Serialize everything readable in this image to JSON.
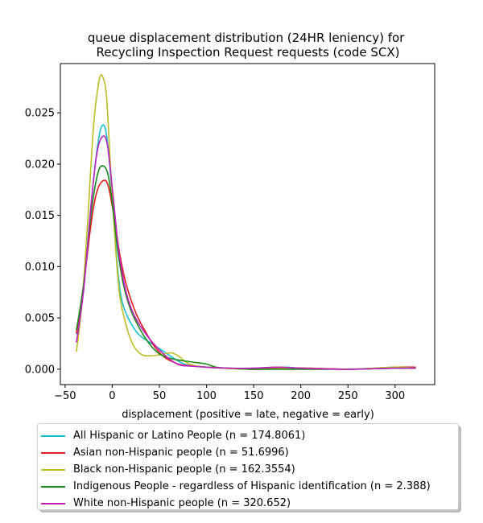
{
  "chart_data": {
    "type": "line",
    "title": "queue displacement distribution (24HR leniency) for\nRecycling Inspection Request  requests (code SCX)",
    "xlabel": "displacement (positive = late, negative = early)",
    "ylabel": "",
    "xlim": [
      -55,
      342
    ],
    "ylim": [
      -0.0015,
      0.0298
    ],
    "xticks": [
      -50,
      0,
      50,
      100,
      150,
      200,
      250,
      300
    ],
    "yticks": [
      0.0,
      0.005,
      0.01,
      0.015,
      0.02,
      0.025
    ],
    "xtick_labels": [
      "−50",
      "0",
      "50",
      "100",
      "150",
      "200",
      "250",
      "300"
    ],
    "ytick_labels": [
      "0.000",
      "0.005",
      "0.010",
      "0.015",
      "0.020",
      "0.025"
    ],
    "grid": false,
    "legend_placement": "below",
    "series": [
      {
        "name": "All Hispanic or Latino People (n = 174.8061)",
        "color": "#17becf",
        "points": [
          [
            -38,
            0.0034
          ],
          [
            -30,
            0.0085
          ],
          [
            -22,
            0.0165
          ],
          [
            -16,
            0.0215
          ],
          [
            -11,
            0.0237
          ],
          [
            -6,
            0.0228
          ],
          [
            0,
            0.017
          ],
          [
            5,
            0.0105
          ],
          [
            10,
            0.0068
          ],
          [
            18,
            0.0048
          ],
          [
            28,
            0.0034
          ],
          [
            40,
            0.0026
          ],
          [
            55,
            0.0017
          ],
          [
            70,
            0.0008
          ],
          [
            80,
            0.0004
          ],
          [
            100,
            0.0002
          ],
          [
            120,
            0.0001
          ],
          [
            150,
            0.0
          ],
          [
            170,
            0.0001
          ],
          [
            185,
            0.0002
          ],
          [
            200,
            0.0001
          ],
          [
            250,
            0.0
          ],
          [
            300,
            0.0001
          ],
          [
            322,
            0.0001
          ]
        ]
      },
      {
        "name": "Asian non-Hispanic people (n = 51.6996)",
        "color": "#e41a1c",
        "points": [
          [
            -38,
            0.0035
          ],
          [
            -30,
            0.0085
          ],
          [
            -22,
            0.0145
          ],
          [
            -16,
            0.0174
          ],
          [
            -9,
            0.0184
          ],
          [
            -4,
            0.0178
          ],
          [
            2,
            0.0148
          ],
          [
            8,
            0.0112
          ],
          [
            15,
            0.0082
          ],
          [
            25,
            0.0055
          ],
          [
            35,
            0.0037
          ],
          [
            45,
            0.0022
          ],
          [
            55,
            0.0012
          ],
          [
            65,
            0.0007
          ],
          [
            75,
            0.0004
          ],
          [
            100,
            0.0002
          ],
          [
            120,
            0.0001
          ],
          [
            150,
            0.0
          ],
          [
            180,
            0.0001
          ],
          [
            210,
            0.0001
          ],
          [
            250,
            0.0
          ],
          [
            280,
            0.0001
          ],
          [
            300,
            0.0002
          ],
          [
            322,
            0.0002
          ]
        ]
      },
      {
        "name": "Black non-Hispanic people (n = 162.3554)",
        "color": "#bcbd22",
        "points": [
          [
            -38,
            0.0017
          ],
          [
            -32,
            0.0065
          ],
          [
            -26,
            0.0145
          ],
          [
            -20,
            0.0235
          ],
          [
            -14,
            0.0281
          ],
          [
            -10,
            0.0285
          ],
          [
            -6,
            0.0265
          ],
          [
            -2,
            0.02
          ],
          [
            3,
            0.0125
          ],
          [
            8,
            0.0072
          ],
          [
            15,
            0.0042
          ],
          [
            22,
            0.0024
          ],
          [
            30,
            0.0015
          ],
          [
            38,
            0.0013
          ],
          [
            50,
            0.0014
          ],
          [
            62,
            0.0016
          ],
          [
            70,
            0.0013
          ],
          [
            78,
            0.0007
          ],
          [
            85,
            0.0004
          ],
          [
            100,
            0.0002
          ],
          [
            150,
            0.0
          ],
          [
            200,
            0.0001
          ],
          [
            250,
            0.0
          ],
          [
            300,
            0.0002
          ],
          [
            322,
            0.0001
          ]
        ]
      },
      {
        "name": "Indigenous People - regardless of Hispanic identification (n = 2.388)",
        "color": "#1a8a1a",
        "points": [
          [
            -38,
            0.0038
          ],
          [
            -30,
            0.0085
          ],
          [
            -22,
            0.0155
          ],
          [
            -15,
            0.0192
          ],
          [
            -9,
            0.0198
          ],
          [
            -4,
            0.0188
          ],
          [
            1,
            0.0155
          ],
          [
            6,
            0.0115
          ],
          [
            12,
            0.0082
          ],
          [
            20,
            0.0057
          ],
          [
            30,
            0.0038
          ],
          [
            40,
            0.0024
          ],
          [
            50,
            0.0015
          ],
          [
            60,
            0.0011
          ],
          [
            70,
            0.0009
          ],
          [
            85,
            0.0007
          ],
          [
            100,
            0.0005
          ],
          [
            110,
            0.0002
          ],
          [
            125,
            0.0001
          ],
          [
            150,
            0.0
          ],
          [
            200,
            0.0
          ],
          [
            250,
            0.0
          ],
          [
            300,
            0.0001
          ],
          [
            322,
            0.0001
          ]
        ]
      },
      {
        "name": "White non-Hispanic people (n = 320.652)",
        "color": "#bf1fbf",
        "points": [
          [
            -38,
            0.0026
          ],
          [
            -30,
            0.008
          ],
          [
            -22,
            0.0165
          ],
          [
            -16,
            0.0212
          ],
          [
            -10,
            0.0227
          ],
          [
            -5,
            0.0218
          ],
          [
            1,
            0.0168
          ],
          [
            7,
            0.0115
          ],
          [
            14,
            0.0078
          ],
          [
            22,
            0.0055
          ],
          [
            32,
            0.0039
          ],
          [
            42,
            0.0027
          ],
          [
            52,
            0.0017
          ],
          [
            62,
            0.0009
          ],
          [
            72,
            0.0004
          ],
          [
            85,
            0.0003
          ],
          [
            100,
            0.0002
          ],
          [
            125,
            0.0001
          ],
          [
            150,
            0.0001
          ],
          [
            175,
            0.0002
          ],
          [
            200,
            0.0001
          ],
          [
            250,
            0.0
          ],
          [
            300,
            0.0001
          ],
          [
            322,
            0.0001
          ]
        ]
      }
    ]
  }
}
